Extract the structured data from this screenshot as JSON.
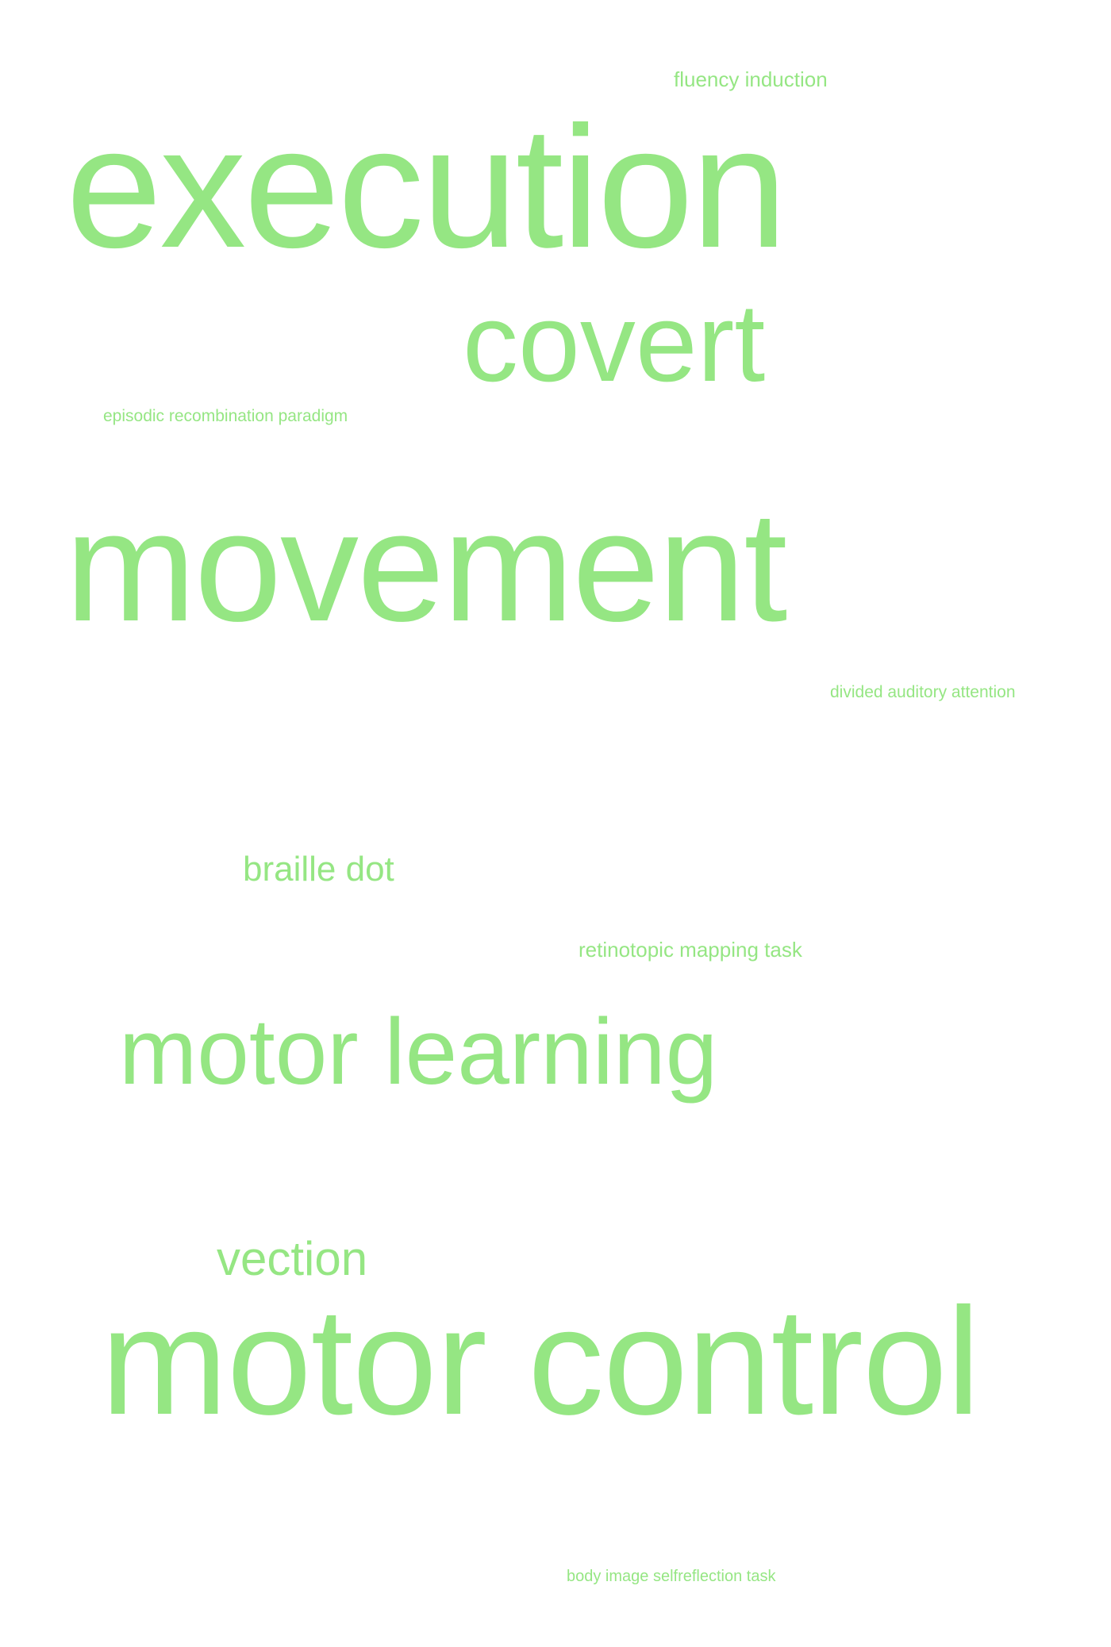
{
  "cloud": {
    "color": "#95e683",
    "words": {
      "fluency_induction": "fluency induction",
      "execution": "execution",
      "covert": "covert",
      "episodic_recombination_paradigm": "episodic recombination paradigm",
      "movement": "movement",
      "divided_auditory_attention": "divided auditory attention",
      "braille_dot": "braille dot",
      "retinotopic_mapping_task": "retinotopic mapping task",
      "motor_learning": "motor learning",
      "vection": "vection",
      "motor_control": "motor control",
      "body_image_selfreflection_task": "body image selfreflection task"
    }
  }
}
